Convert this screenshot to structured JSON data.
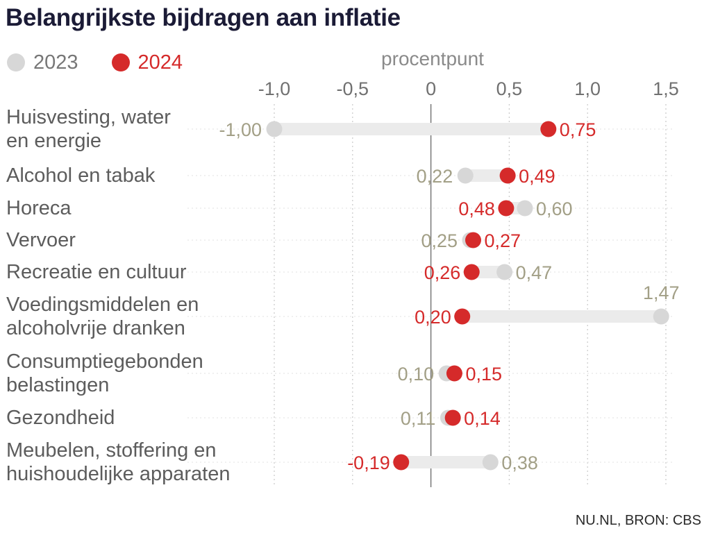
{
  "title": "Belangrijkste bijdragen aan inflatie",
  "source": "NU.NL, BRON: CBS",
  "colors": {
    "y2023": "#d7d7d7",
    "y2024": "#d52a2a",
    "label2023": "#a29f86",
    "axis": "#8a8a8a",
    "category": "#5c5c5c",
    "bar": "#ebebeb"
  },
  "chart_data": {
    "type": "dumbbell",
    "title": "Belangrijkste bijdragen aan inflatie",
    "xlabel": "procentpunt",
    "xlim": [
      -1.0,
      1.5
    ],
    "x_ticks": [
      -1.0,
      -0.5,
      0,
      0.5,
      1.0,
      1.5
    ],
    "x_tick_labels": [
      "-1,0",
      "-0,5",
      "0",
      "0,5",
      "1,0",
      "1,5"
    ],
    "legend_position": "top-left",
    "grid": "vertical dotted",
    "series": [
      {
        "name": "2023",
        "values": [
          -1.0,
          0.22,
          0.6,
          0.25,
          0.47,
          1.47,
          0.1,
          0.11,
          0.38
        ],
        "labels": [
          "-1,00",
          "0,22",
          "0,60",
          "0,25",
          "0,47",
          "1,47",
          "0,10",
          "0,11",
          "0,38"
        ]
      },
      {
        "name": "2024",
        "values": [
          0.75,
          0.49,
          0.48,
          0.27,
          0.26,
          0.2,
          0.15,
          0.14,
          -0.19
        ],
        "labels": [
          "0,75",
          "0,49",
          "0,48",
          "0,27",
          "0,26",
          "0,20",
          "0,15",
          "0,14",
          "-0,19"
        ]
      }
    ],
    "categories": [
      [
        "Huisvesting, water",
        "en energie"
      ],
      [
        "Alcohol en tabak"
      ],
      [
        "Horeca"
      ],
      [
        "Vervoer"
      ],
      [
        "Recreatie en cultuur"
      ],
      [
        "Voedingsmiddelen en",
        "alcoholvrije dranken"
      ],
      [
        "Consumptiegebonden",
        "belastingen"
      ],
      [
        "Gezondheid"
      ],
      [
        "Meubelen, stoffering en",
        "huishoudelijke apparaten"
      ]
    ]
  }
}
